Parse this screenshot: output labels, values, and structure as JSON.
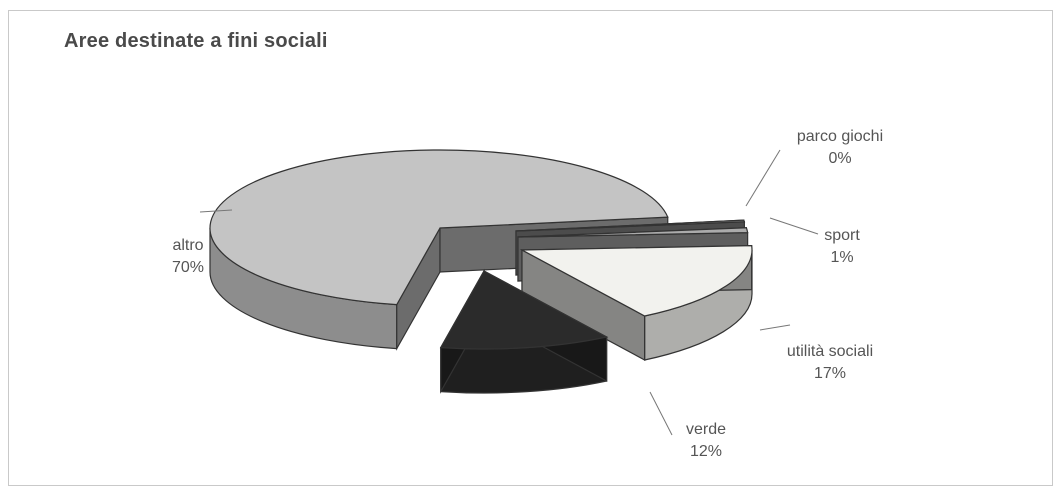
{
  "chart_data": {
    "type": "pie",
    "title": "Aree destinate a fini sociali",
    "categories": [
      "altro",
      "verde",
      "utilità sociali",
      "sport",
      "parco giochi"
    ],
    "values": [
      70,
      12,
      17,
      1,
      0
    ],
    "labels": [
      "70%",
      "12%",
      "17%",
      "1%",
      "0%"
    ],
    "colors": {
      "altro": "#c4c4c4",
      "verde": "#2b2b2b",
      "utilità sociali": "#f2f2ee",
      "sport": "#ababab",
      "parco giochi": "#8a8a8a"
    },
    "exploded": true,
    "three_d": true
  }
}
